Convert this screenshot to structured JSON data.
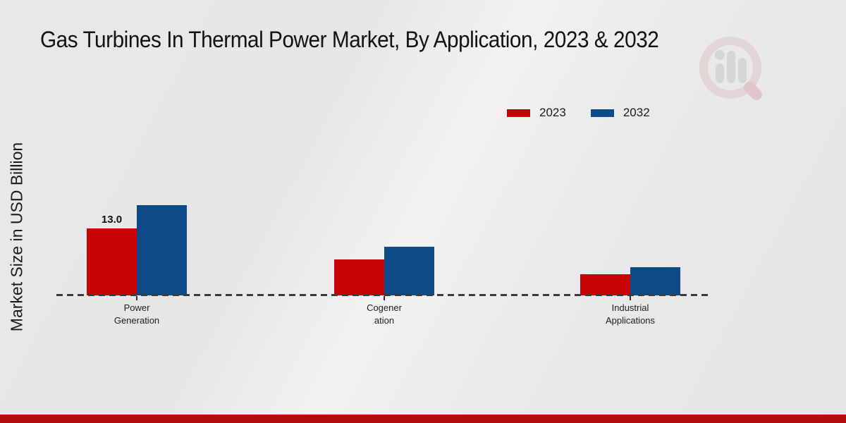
{
  "page": {
    "title": "Gas Turbines In Thermal Power Market, By Application, 2023 & 2032",
    "y_axis_label": "Market Size in USD Billion"
  },
  "legend": {
    "items": [
      {
        "label": "2023",
        "color": "#c60404"
      },
      {
        "label": "2032",
        "color": "#0d4a87"
      }
    ]
  },
  "chart_data": {
    "type": "bar",
    "title": "Gas Turbines In Thermal Power Market, By Application, 2023 & 2032",
    "ylabel": "Market Size in USD Billion",
    "xlabel": "",
    "categories": [
      "Power Generation",
      "Cogeneration",
      "Industrial Applications"
    ],
    "category_tick_lines": [
      [
        "Power",
        "Generation"
      ],
      [
        "Cogener",
        "ation"
      ],
      [
        "Industrial",
        "Applications"
      ]
    ],
    "series": [
      {
        "name": "2023",
        "color": "#c60404",
        "values": [
          13.0,
          7.0,
          4.1
        ]
      },
      {
        "name": "2032",
        "color": "#0d4a87",
        "values": [
          17.5,
          9.4,
          5.5
        ]
      }
    ],
    "data_labels": [
      {
        "series_index": 0,
        "category_index": 0,
        "text": "13.0"
      }
    ],
    "ylim": [
      0,
      20
    ],
    "grid": false,
    "legend_position": "top-right",
    "baseline_style": "dashed"
  },
  "colors": {
    "series_2023": "#c60404",
    "series_2032": "#0d4a87",
    "bottom_strip": "#b20c0c",
    "baseline_dash": "#3b3b3b",
    "background": "#e9e9eb",
    "title_text": "#121212"
  },
  "watermark_logo": "magnifier-bar-chart-logo"
}
